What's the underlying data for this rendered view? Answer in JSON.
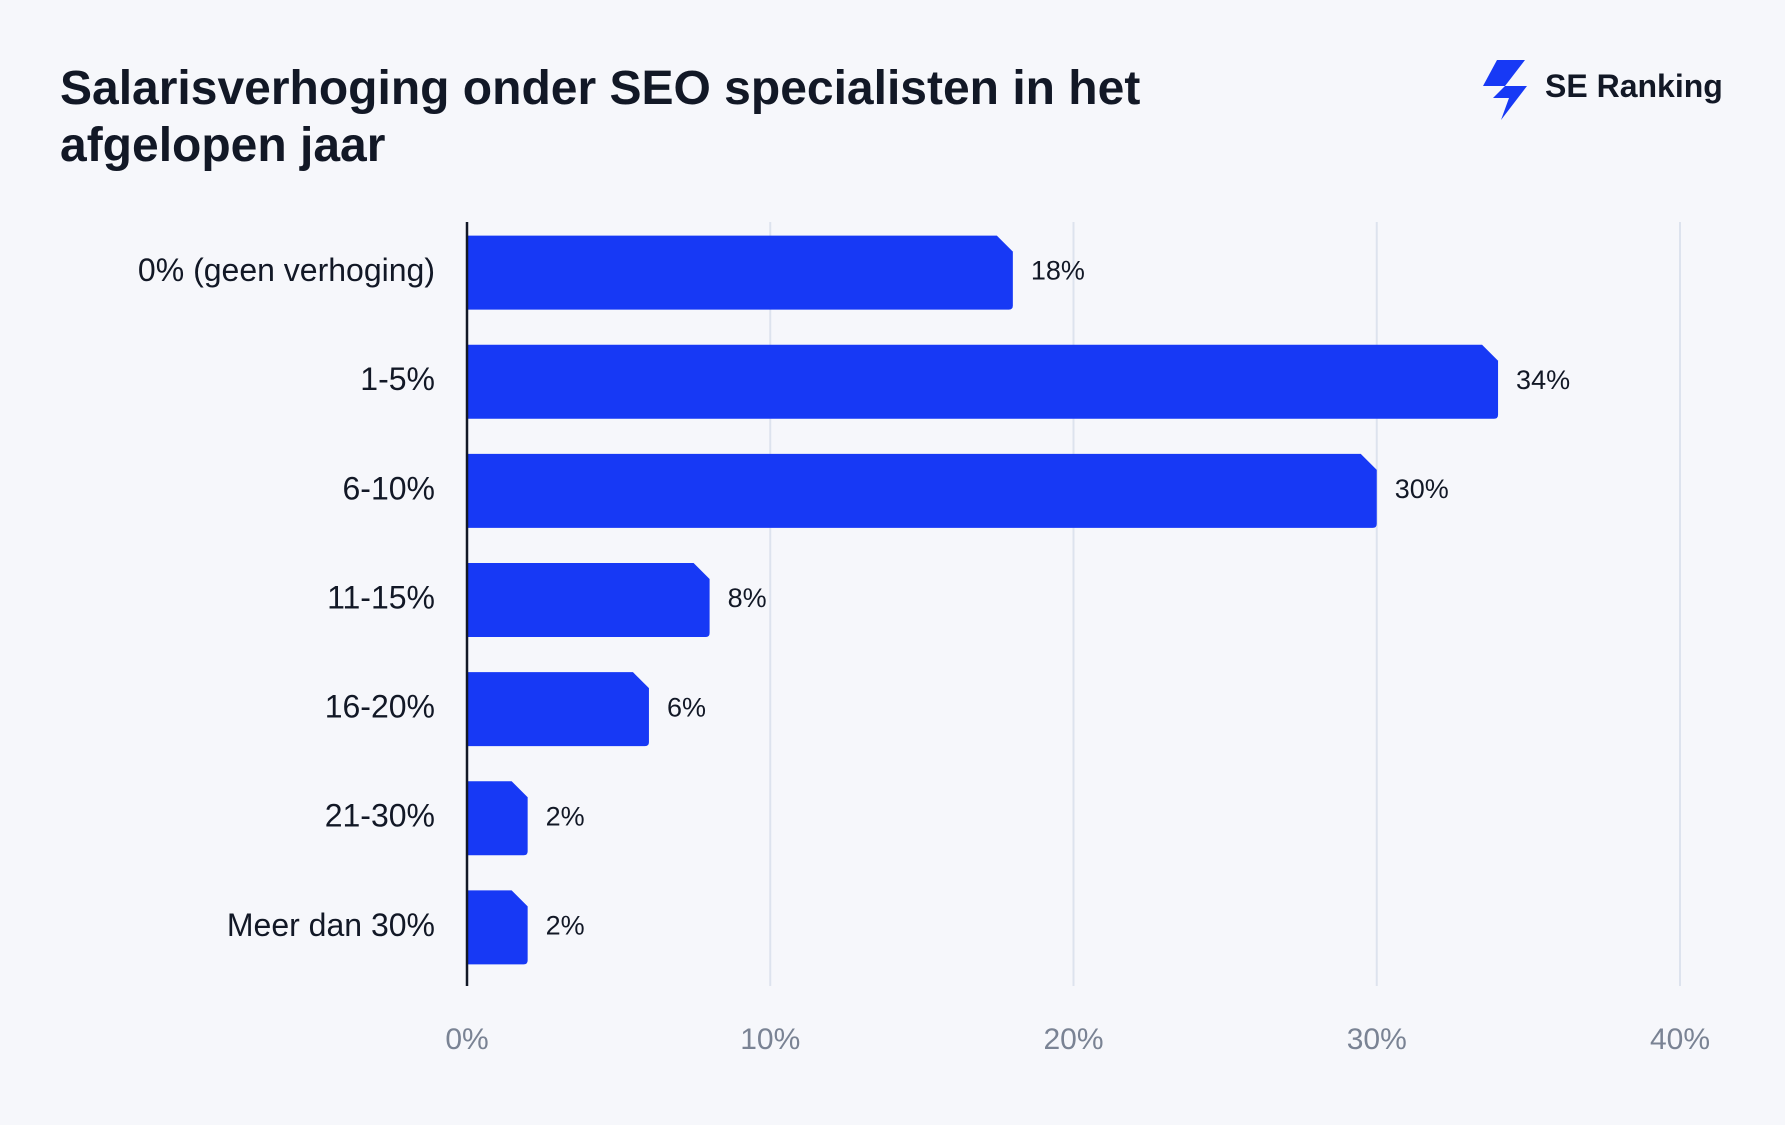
{
  "chart_data": {
    "type": "bar",
    "orientation": "horizontal",
    "title": "Salarisverhoging onder SEO specialisten in het afgelopen jaar",
    "brand": "SE Ranking",
    "categories": [
      "0% (geen verhoging)",
      "1-5%",
      "6-10%",
      "11-15%",
      "16-20%",
      "21-30%",
      "Meer dan 30%"
    ],
    "values": [
      18,
      34,
      30,
      8,
      6,
      2,
      2
    ],
    "value_labels": [
      "18%",
      "34%",
      "30%",
      "8%",
      "6%",
      "2%",
      "2%"
    ],
    "color": "#1739f5",
    "xlim": [
      0,
      40
    ],
    "xticks": [
      {
        "value": 0,
        "label": "0%"
      },
      {
        "value": 10,
        "label": "10%"
      },
      {
        "value": 20,
        "label": "20%"
      },
      {
        "value": 30,
        "label": "30%"
      },
      {
        "value": 40,
        "label": "40%"
      }
    ],
    "grid": true
  }
}
